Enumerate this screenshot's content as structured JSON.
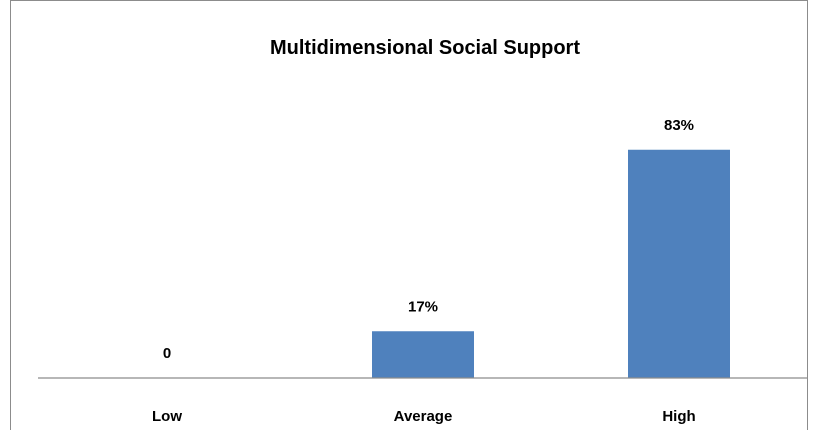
{
  "chart_data": {
    "type": "bar",
    "title": "Multidimensional Social Support",
    "categories": [
      "Low",
      "Average",
      "High"
    ],
    "values": [
      0,
      17,
      83
    ],
    "data_labels": [
      "0",
      "17%",
      "83%"
    ],
    "xlabel": "",
    "ylabel": "",
    "ylim": [
      0,
      100
    ],
    "grid": false,
    "legend": "none",
    "bar_color": "#4f81bd"
  }
}
